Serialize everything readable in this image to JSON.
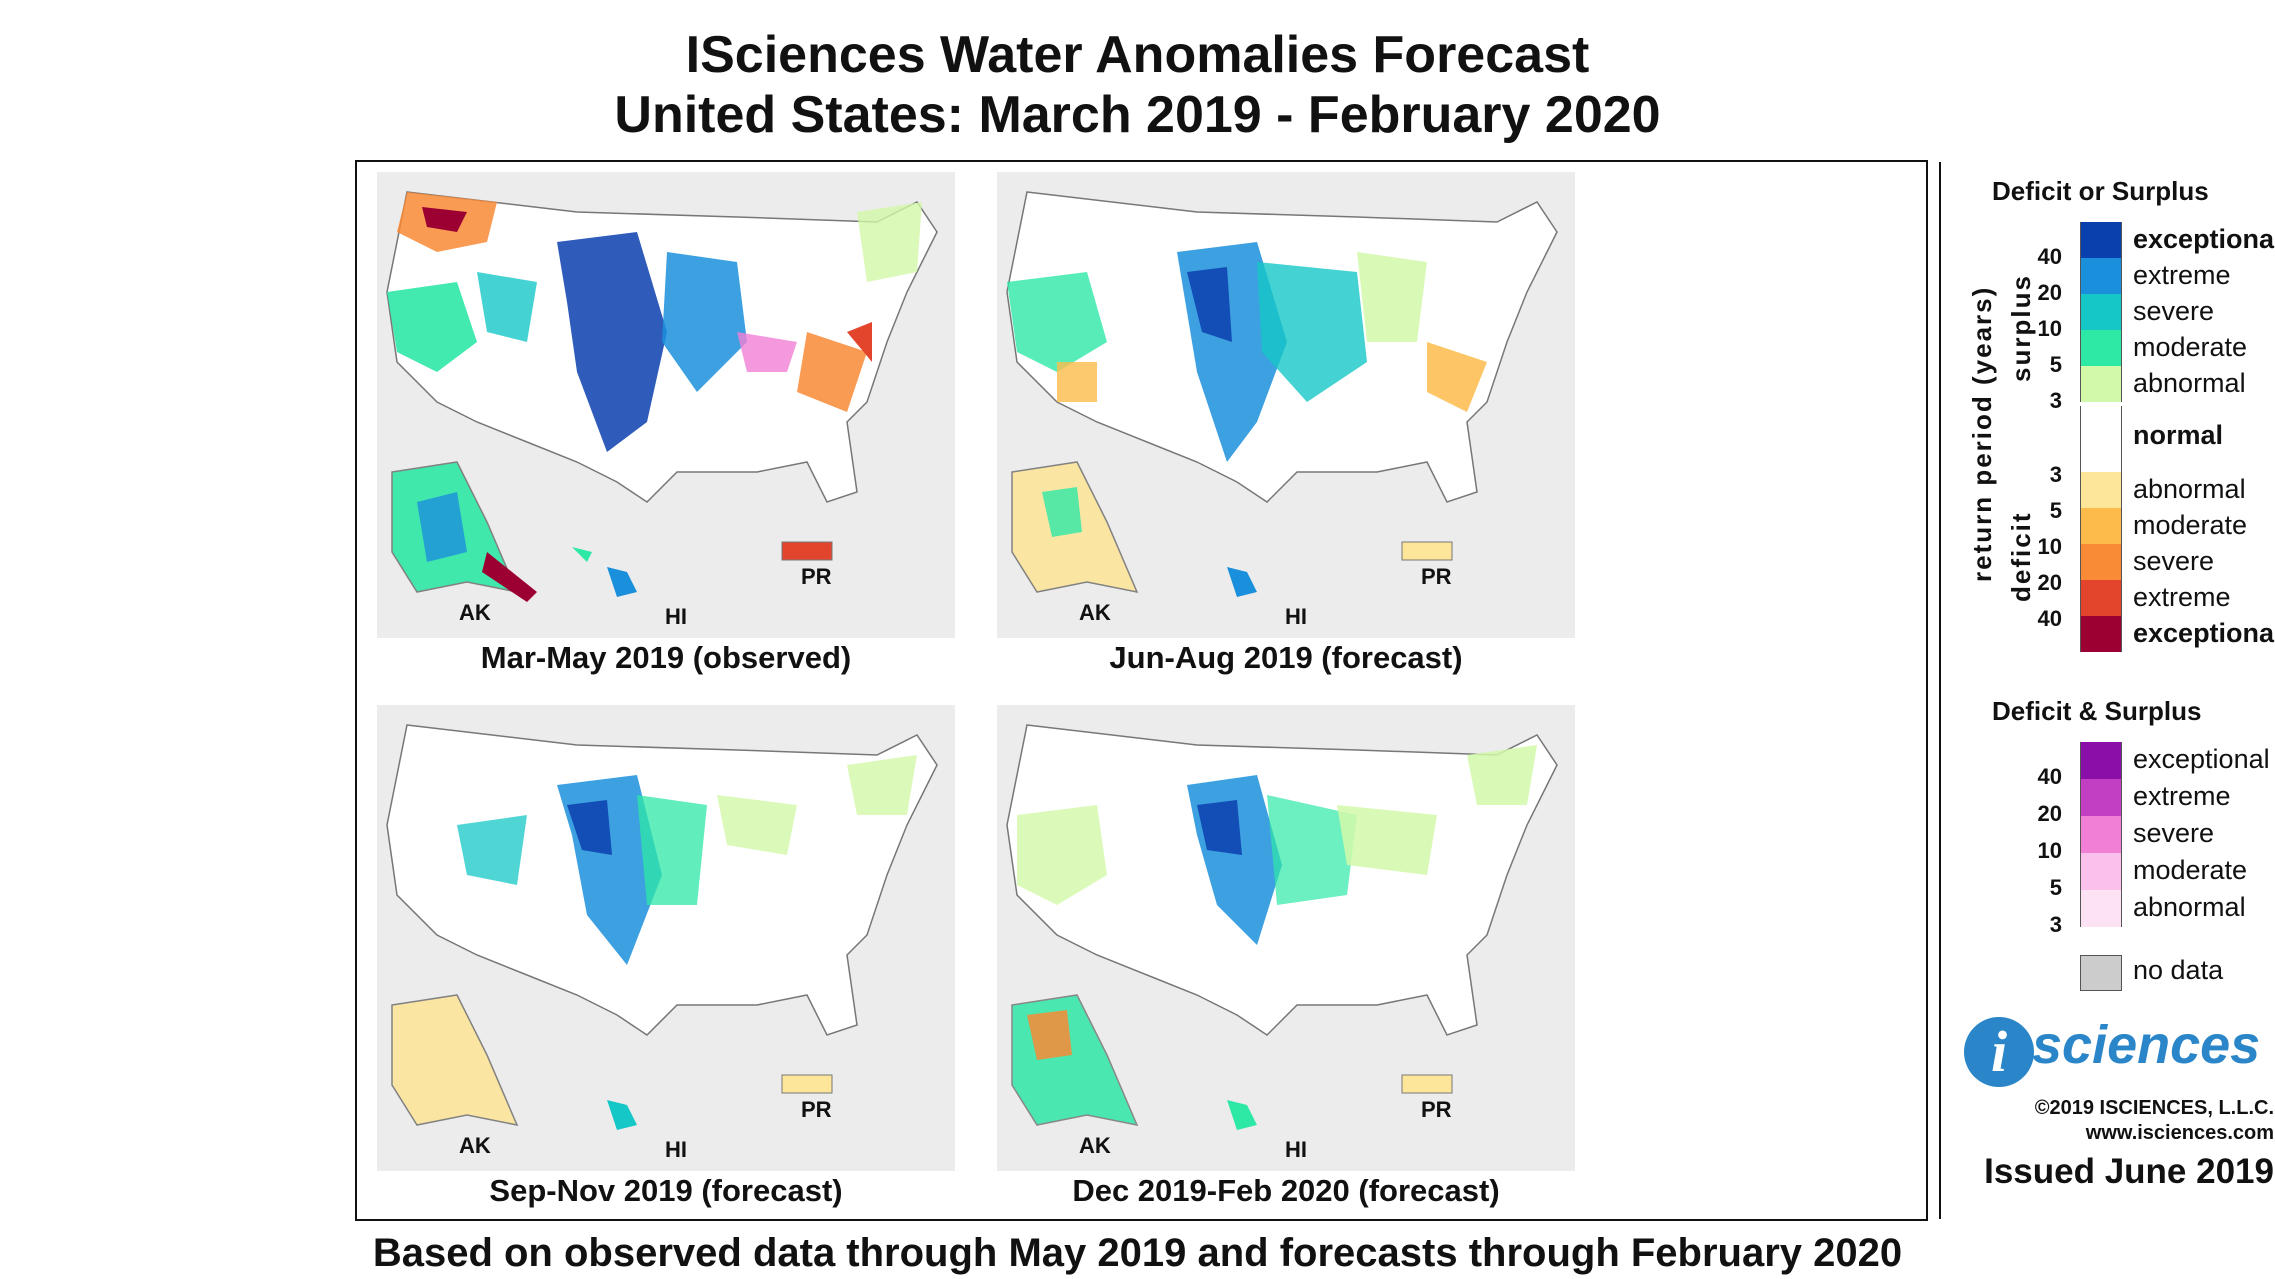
{
  "title_line1": "ISciences Water Anomalies Forecast",
  "title_line2": "United States: March 2019 - February 2020",
  "footer": "Based on observed data through May 2019 and forecasts through February 2020",
  "panels": [
    {
      "caption": "Mar-May 2019 (observed)",
      "ak": "AK",
      "hi": "HI",
      "pr": "PR"
    },
    {
      "caption": "Jun-Aug 2019 (forecast)",
      "ak": "AK",
      "hi": "HI",
      "pr": "PR"
    },
    {
      "caption": "Sep-Nov 2019 (forecast)",
      "ak": "AK",
      "hi": "HI",
      "pr": "PR"
    },
    {
      "caption": "Dec 2019-Feb 2020 (forecast)",
      "ak": "AK",
      "hi": "HI",
      "pr": "PR"
    }
  ],
  "legend": {
    "heading1": "Deficit or Surplus",
    "axis_label": "return period (years)",
    "surplus_label": "surplus",
    "deficit_label": "deficit",
    "surplus_classes": [
      {
        "label": "exceptional",
        "color": "#0a3fae"
      },
      {
        "label": "extreme",
        "color": "#1a8fdc"
      },
      {
        "label": "severe",
        "color": "#15c7c7"
      },
      {
        "label": "moderate",
        "color": "#2ee8a6"
      },
      {
        "label": "abnormal",
        "color": "#d2f9a9"
      }
    ],
    "normal_label": "normal",
    "normal_color": "#ffffff",
    "deficit_classes": [
      {
        "label": "abnormal",
        "color": "#fde59a"
      },
      {
        "label": "moderate",
        "color": "#fdbb4a"
      },
      {
        "label": "severe",
        "color": "#f98a36"
      },
      {
        "label": "extreme",
        "color": "#e2442c"
      },
      {
        "label": "exceptional",
        "color": "#9c0033"
      }
    ],
    "surplus_ticks": [
      "40",
      "20",
      "10",
      "5",
      "3"
    ],
    "deficit_ticks": [
      "3",
      "5",
      "10",
      "20",
      "40"
    ],
    "heading2": "Deficit & Surplus",
    "both_classes": [
      {
        "label": "exceptional",
        "color": "#8a0ea8"
      },
      {
        "label": "extreme",
        "color": "#c23fc4"
      },
      {
        "label": "severe",
        "color": "#f27fd6"
      },
      {
        "label": "moderate",
        "color": "#fbc0ec"
      },
      {
        "label": "abnormal",
        "color": "#fde2f3"
      }
    ],
    "both_ticks": [
      "40",
      "20",
      "10",
      "5",
      "3"
    ],
    "no_data_label": "no data",
    "no_data_color": "#cccccc"
  },
  "logo_i": "i",
  "logo_text": "sciences",
  "copyright": "©2019 ISCIENCES, L.L.C.",
  "website": "www.isciences.com",
  "issued": "Issued June 2019"
}
